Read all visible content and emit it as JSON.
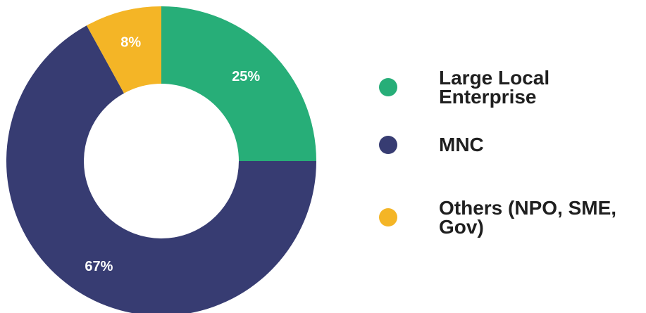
{
  "chart_data": {
    "type": "pie",
    "series": [
      {
        "name": "Large Local Enterprise",
        "value": 25,
        "label": "25%",
        "color": "#27ae78"
      },
      {
        "name": "MNC",
        "value": 67,
        "label": "67%",
        "color": "#373c72"
      },
      {
        "name": "Others (NPO, SME, Gov)",
        "value": 8,
        "label": "8%",
        "color": "#f4b526"
      }
    ],
    "legend_position": "right"
  }
}
